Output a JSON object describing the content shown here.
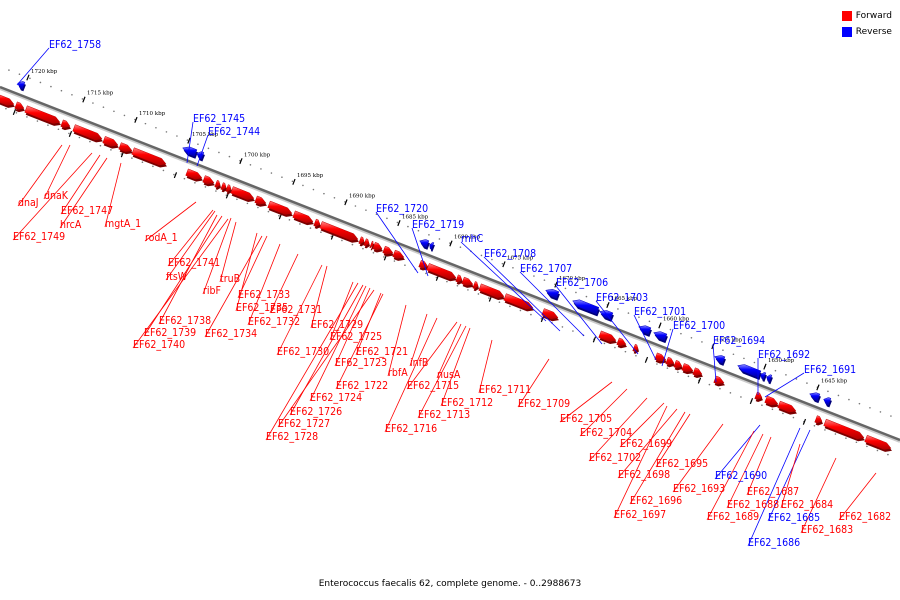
{
  "legend": {
    "forward_label": "Forward",
    "reverse_label": "Reverse",
    "forward_color": "#ff0000",
    "reverse_color": "#0000ff"
  },
  "caption": "Enterococcus faecalis 62, complete genome. - 0..2988673",
  "ticks": [
    "1720 kbp",
    "1715 kbp",
    "1710 kbp",
    "1705 kbp",
    "1700 kbp",
    "1695 kbp",
    "1690 kbp",
    "1685 kbp",
    "1680 kbp",
    "1675 kbp",
    "1670 kbp",
    "1665 kbp",
    "1660 kbp",
    "1655 kbp",
    "1650 kbp",
    "1645 kbp"
  ],
  "reverse_labels": [
    "EF62_1758",
    "EF62_1745",
    "EF62_1744",
    "EF62_1720",
    "EF62_1719",
    "rnhC",
    "EF62_1708",
    "EF62_1707",
    "EF62_1706",
    "EF62_1703",
    "EF62_1701",
    "EF62_1700",
    "EF62_1694",
    "EF62_1692",
    "EF62_1691",
    "EF62_1690",
    "EF62_1685",
    "EF62_1686"
  ],
  "forward_labels": [
    "dnaK",
    "dnaJ",
    "EF62_1747",
    "hrcA",
    "EF62_1749",
    "mgtA_1",
    "rodA_1",
    "EF62_1741",
    "ftsW",
    "truB",
    "ribF",
    "EF62_1738",
    "EF62_1739",
    "EF62_1740",
    "EF62_1735",
    "EF62_1734",
    "EF62_1733",
    "EF62_1732",
    "EF62_1731",
    "EF62_1730",
    "EF62_1729",
    "EF62_1725",
    "EF62_1723",
    "EF62_1721",
    "EF62_1722",
    "EF62_1724",
    "EF62_1726",
    "EF62_1727",
    "EF62_1728",
    "infB",
    "rbfA",
    "nusA",
    "EF62_1715",
    "EF62_1712",
    "EF62_1713",
    "EF62_1716",
    "EF62_1711",
    "EF62_1709",
    "EF62_1705",
    "EF62_1704",
    "EF62_1699",
    "EF62_1702",
    "EF62_1698",
    "EF62_1695",
    "EF62_1696",
    "EF62_1697",
    "EF62_1693",
    "EF62_1687",
    "EF62_1688",
    "EF62_1689",
    "EF62_1684",
    "EF62_1683",
    "EF62_1682"
  ]
}
